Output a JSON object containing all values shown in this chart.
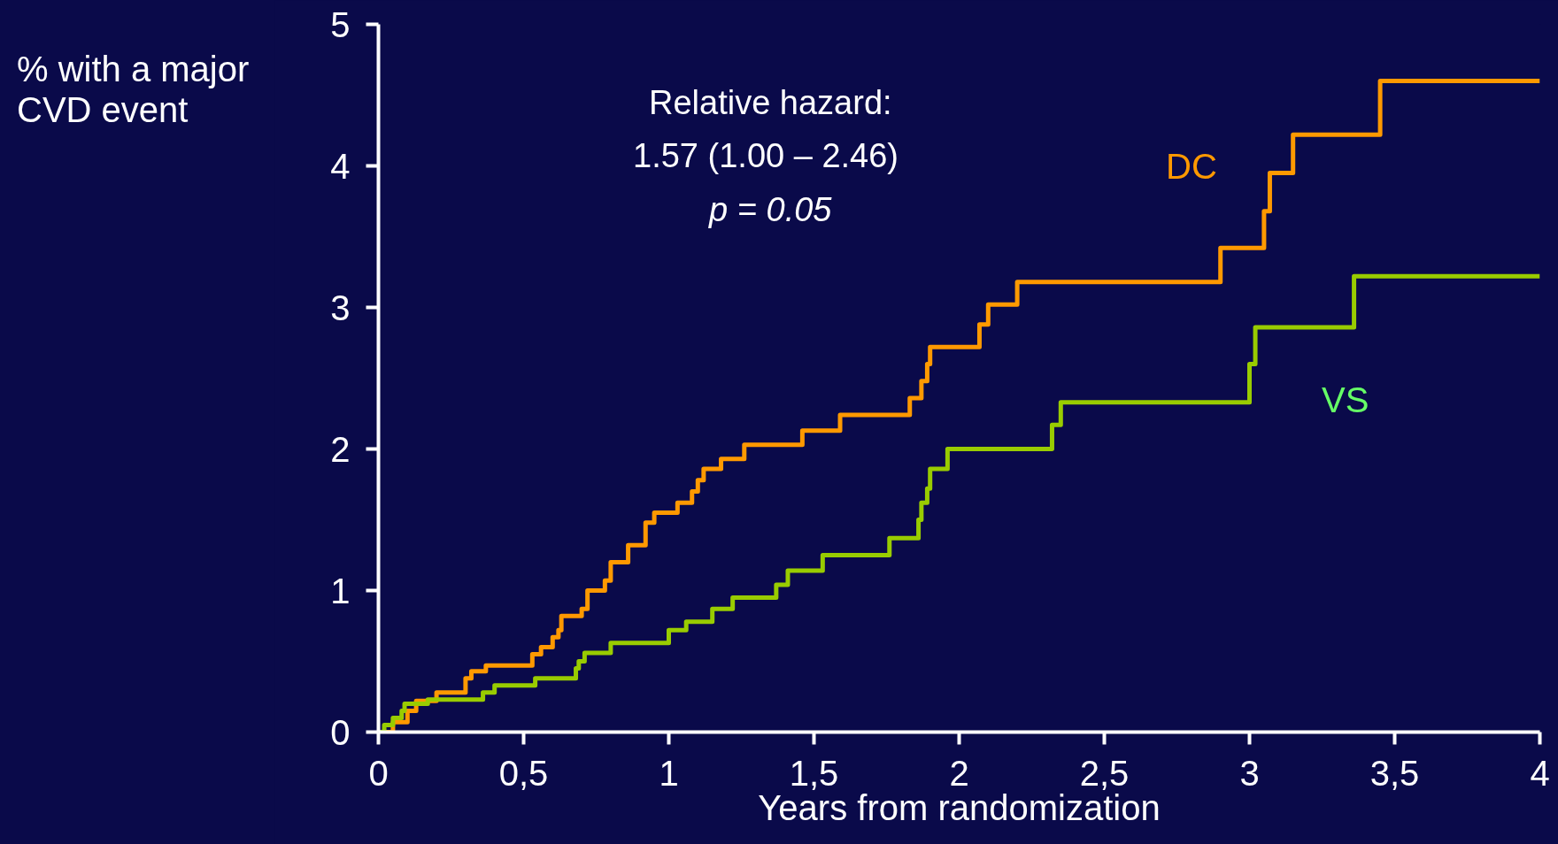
{
  "chart_data": {
    "type": "step",
    "xlabel": "Years from randomization",
    "ylabel": "% with a major CVD event",
    "xlim": [
      0,
      4
    ],
    "ylim": [
      0,
      5
    ],
    "xticks": [
      0,
      {
        "value": 0.5,
        "label": "0,5"
      },
      1,
      {
        "value": 1.5,
        "label": "1,5"
      },
      2,
      {
        "value": 2.5,
        "label": "2,5"
      },
      3,
      {
        "value": 3.5,
        "label": "3,5"
      },
      4
    ],
    "yticks": [
      0,
      1,
      2,
      3,
      4,
      5
    ],
    "grid": false,
    "marker": "none",
    "line_style": "solid",
    "annotations": [
      "Relative hazard:",
      "1.57  (1.00 – 2.46)",
      "p = 0.05"
    ],
    "series": [
      {
        "name": "DC",
        "color": "#ff9900",
        "x": [
          0,
          0.05,
          0.1,
          0.13,
          0.2,
          0.3,
          0.32,
          0.37,
          0.53,
          0.56,
          0.6,
          0.62,
          0.63,
          0.7,
          0.72,
          0.78,
          0.8,
          0.86,
          0.92,
          0.95,
          1.03,
          1.08,
          1.1,
          1.12,
          1.18,
          1.26,
          1.46,
          1.59,
          1.83,
          1.87,
          1.89,
          1.9,
          2.07,
          2.1,
          2.2,
          2.9,
          3.05,
          3.07,
          3.15,
          3.45,
          4.0
        ],
        "values": [
          0,
          0.07,
          0.15,
          0.22,
          0.28,
          0.38,
          0.43,
          0.47,
          0.55,
          0.6,
          0.67,
          0.72,
          0.82,
          0.87,
          1.0,
          1.07,
          1.2,
          1.32,
          1.48,
          1.55,
          1.62,
          1.7,
          1.78,
          1.86,
          1.93,
          2.03,
          2.13,
          2.24,
          2.36,
          2.48,
          2.6,
          2.72,
          2.88,
          3.02,
          3.18,
          3.42,
          3.68,
          3.95,
          4.22,
          4.6,
          4.6
        ]
      },
      {
        "name": "VS",
        "color": "#99cc00",
        "x": [
          0,
          0.02,
          0.05,
          0.08,
          0.09,
          0.17,
          0.36,
          0.4,
          0.54,
          0.68,
          0.69,
          0.71,
          0.8,
          1.0,
          1.06,
          1.15,
          1.22,
          1.37,
          1.41,
          1.53,
          1.76,
          1.86,
          1.87,
          1.89,
          1.9,
          1.96,
          2.32,
          2.35,
          3.0,
          3.02,
          3.36,
          4.0
        ],
        "values": [
          0,
          0.05,
          0.1,
          0.15,
          0.2,
          0.23,
          0.28,
          0.33,
          0.38,
          0.45,
          0.5,
          0.56,
          0.63,
          0.72,
          0.78,
          0.87,
          0.95,
          1.04,
          1.14,
          1.25,
          1.37,
          1.5,
          1.62,
          1.72,
          1.86,
          2.0,
          2.17,
          2.33,
          2.6,
          2.86,
          3.22,
          3.22
        ]
      }
    ]
  }
}
